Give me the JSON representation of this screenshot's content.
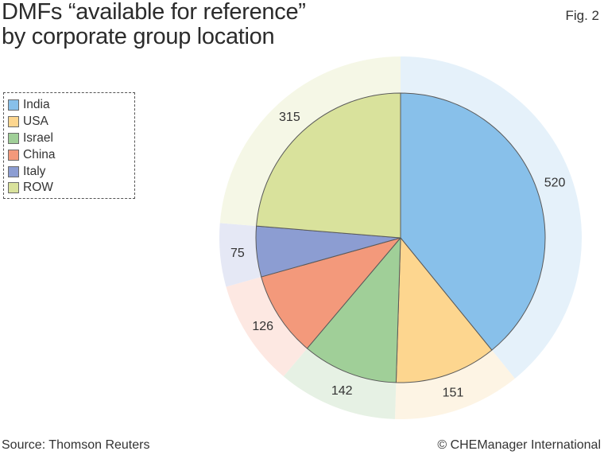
{
  "title_line1": "DMFs “available for reference”",
  "title_line2": "by corporate group location",
  "figure_label": "Fig. 2",
  "source": "Source: Thomson Reuters",
  "copyright": "© CHEManager International",
  "chart_data": {
    "type": "pie",
    "categories": [
      "India",
      "USA",
      "Israel",
      "China",
      "Italy",
      "ROW"
    ],
    "values": [
      520,
      151,
      142,
      126,
      75,
      315
    ],
    "data_labels": [
      "520",
      "151",
      "142",
      "126",
      "75",
      "315"
    ],
    "legend_position": "top-left",
    "colors": [
      "#88c0ea",
      "#fdd68f",
      "#a0cf98",
      "#f3997b",
      "#8c9dd2",
      "#d9e29c"
    ],
    "outer_ring_colors": [
      "#e5f1fa",
      "#fdf4e4",
      "#e6f1e4",
      "#fde8e2",
      "#e5e8f5",
      "#f5f7e6"
    ]
  }
}
